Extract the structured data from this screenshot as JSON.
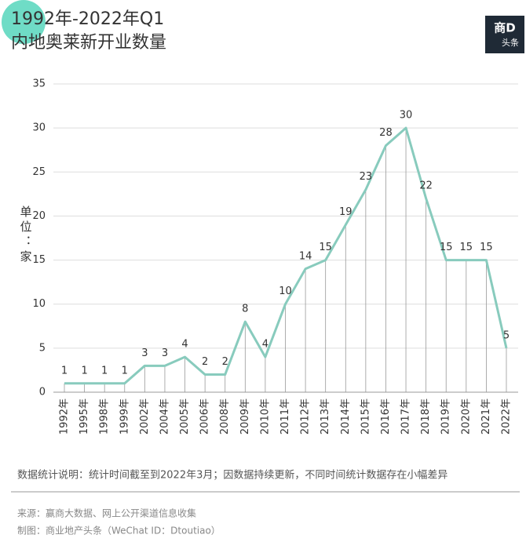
{
  "chart_data": {
    "type": "line",
    "title": "1992年-2022年Q1",
    "subtitle": "内地奥莱新开业数量",
    "y_label": "单位：家",
    "logo": [
      "商D",
      "头条"
    ],
    "categories": [
      "1992年",
      "1995年",
      "1998年",
      "1999年",
      "2002年",
      "2004年",
      "2005年",
      "2006年",
      "2008年",
      "2009年",
      "2010年",
      "2011年",
      "2012年",
      "2013年",
      "2014年",
      "2015年",
      "2016年",
      "2017年",
      "2018年",
      "2019年",
      "2020年",
      "2021年",
      "2022年"
    ],
    "series": [
      {
        "name": "新开业数量",
        "color": "#88cbbd",
        "values": [
          1,
          1,
          1,
          1,
          3,
          3,
          4,
          2,
          2,
          8,
          4,
          10,
          14,
          15,
          19,
          23,
          28,
          30,
          22,
          15,
          15,
          15,
          5
        ]
      }
    ],
    "ylim": [
      0,
      35
    ],
    "yticks": [
      0,
      5,
      10,
      15,
      20,
      25,
      30,
      35
    ],
    "grid": true,
    "notes": [
      "数据统计说明：统计时间截至到2022年3月；因数据持续更新，不同时间统计数据存在小幅差异",
      "来源：赢商大数据、网上公开渠道信息收集",
      "制图：商业地产头条（WeChat ID：Dtoutiao）"
    ]
  }
}
